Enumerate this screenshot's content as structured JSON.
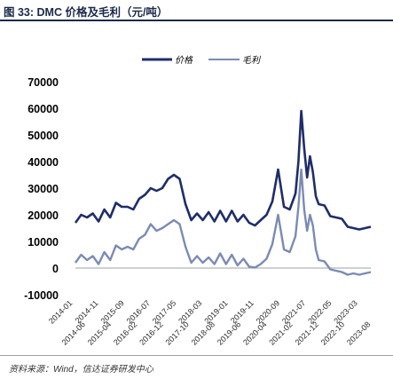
{
  "figure": {
    "title": "图 33:  DMC 价格及毛利（元/吨）",
    "source": "资料来源：Wind，信达证券研发中心"
  },
  "colors": {
    "price": "#1f2d6b",
    "margin": "#7c8bb3",
    "header_rule": "#1c2a4a"
  },
  "chart_data": {
    "type": "line",
    "title": "",
    "xlabel": "",
    "ylabel": "",
    "ylim": [
      -10000,
      70000
    ],
    "yticks": [
      -10000,
      0,
      10000,
      20000,
      30000,
      40000,
      50000,
      60000,
      70000
    ],
    "ytick_labels": [
      "-10000",
      "0",
      "10000",
      "20000",
      "30000",
      "40000",
      "50000",
      "60000",
      "70000"
    ],
    "legend": {
      "position": "top-center",
      "entries": [
        "价格",
        "毛利"
      ]
    },
    "xtick_labels": [
      "2014-01",
      "2014-06",
      "2014-11",
      "2015-04",
      "2015-09",
      "2016-02",
      "2016-07",
      "2016-12",
      "2017-05",
      "2017-10",
      "2018-03",
      "2018-08",
      "2019-01",
      "2019-06",
      "2019-11",
      "2020-04",
      "2020-09",
      "2021-02",
      "2021-07",
      "2021-12",
      "2022-05",
      "2022-10",
      "2023-03",
      "2023-08"
    ],
    "x": [
      2014.0,
      2014.2,
      2014.4,
      2014.6,
      2014.8,
      2015.0,
      2015.2,
      2015.4,
      2015.6,
      2015.8,
      2016.0,
      2016.2,
      2016.4,
      2016.6,
      2016.8,
      2017.0,
      2017.2,
      2017.4,
      2017.6,
      2017.8,
      2018.0,
      2018.2,
      2018.4,
      2018.6,
      2018.8,
      2019.0,
      2019.2,
      2019.4,
      2019.6,
      2019.8,
      2020.0,
      2020.2,
      2020.4,
      2020.6,
      2020.8,
      2021.0,
      2021.2,
      2021.4,
      2021.6,
      2021.7,
      2021.8,
      2021.9,
      2022.0,
      2022.1,
      2022.2,
      2022.3,
      2022.4,
      2022.6,
      2022.8,
      2023.0,
      2023.2,
      2023.4,
      2023.6,
      2023.8,
      2024.0,
      2024.2
    ],
    "series": [
      {
        "name": "价格",
        "values": [
          17000,
          20000,
          19000,
          20500,
          17500,
          22000,
          19000,
          24500,
          23000,
          23000,
          22000,
          26000,
          27500,
          30000,
          29000,
          30000,
          33500,
          35000,
          33500,
          24000,
          18000,
          20500,
          18000,
          21000,
          17500,
          21500,
          17500,
          21500,
          17500,
          20000,
          17000,
          16000,
          18000,
          20000,
          25000,
          37000,
          23000,
          22000,
          28000,
          40000,
          59000,
          45000,
          34000,
          42000,
          36000,
          27000,
          24000,
          23500,
          19500,
          19000,
          18500,
          15500,
          15000,
          14500,
          15000,
          15500
        ]
      },
      {
        "name": "毛利",
        "values": [
          2000,
          5000,
          3000,
          4500,
          1500,
          6000,
          3000,
          8500,
          7000,
          8000,
          7000,
          11000,
          12500,
          16500,
          14000,
          15000,
          16500,
          18000,
          16500,
          8000,
          2000,
          4500,
          2000,
          4000,
          1500,
          5500,
          1500,
          5000,
          1000,
          3500,
          500,
          200,
          1500,
          3500,
          9000,
          20000,
          7000,
          6000,
          12000,
          23000,
          37000,
          22000,
          14000,
          20000,
          16000,
          7000,
          3000,
          2500,
          -500,
          -1000,
          -1500,
          -2500,
          -2000,
          -2500,
          -2000,
          -1500
        ]
      }
    ]
  }
}
